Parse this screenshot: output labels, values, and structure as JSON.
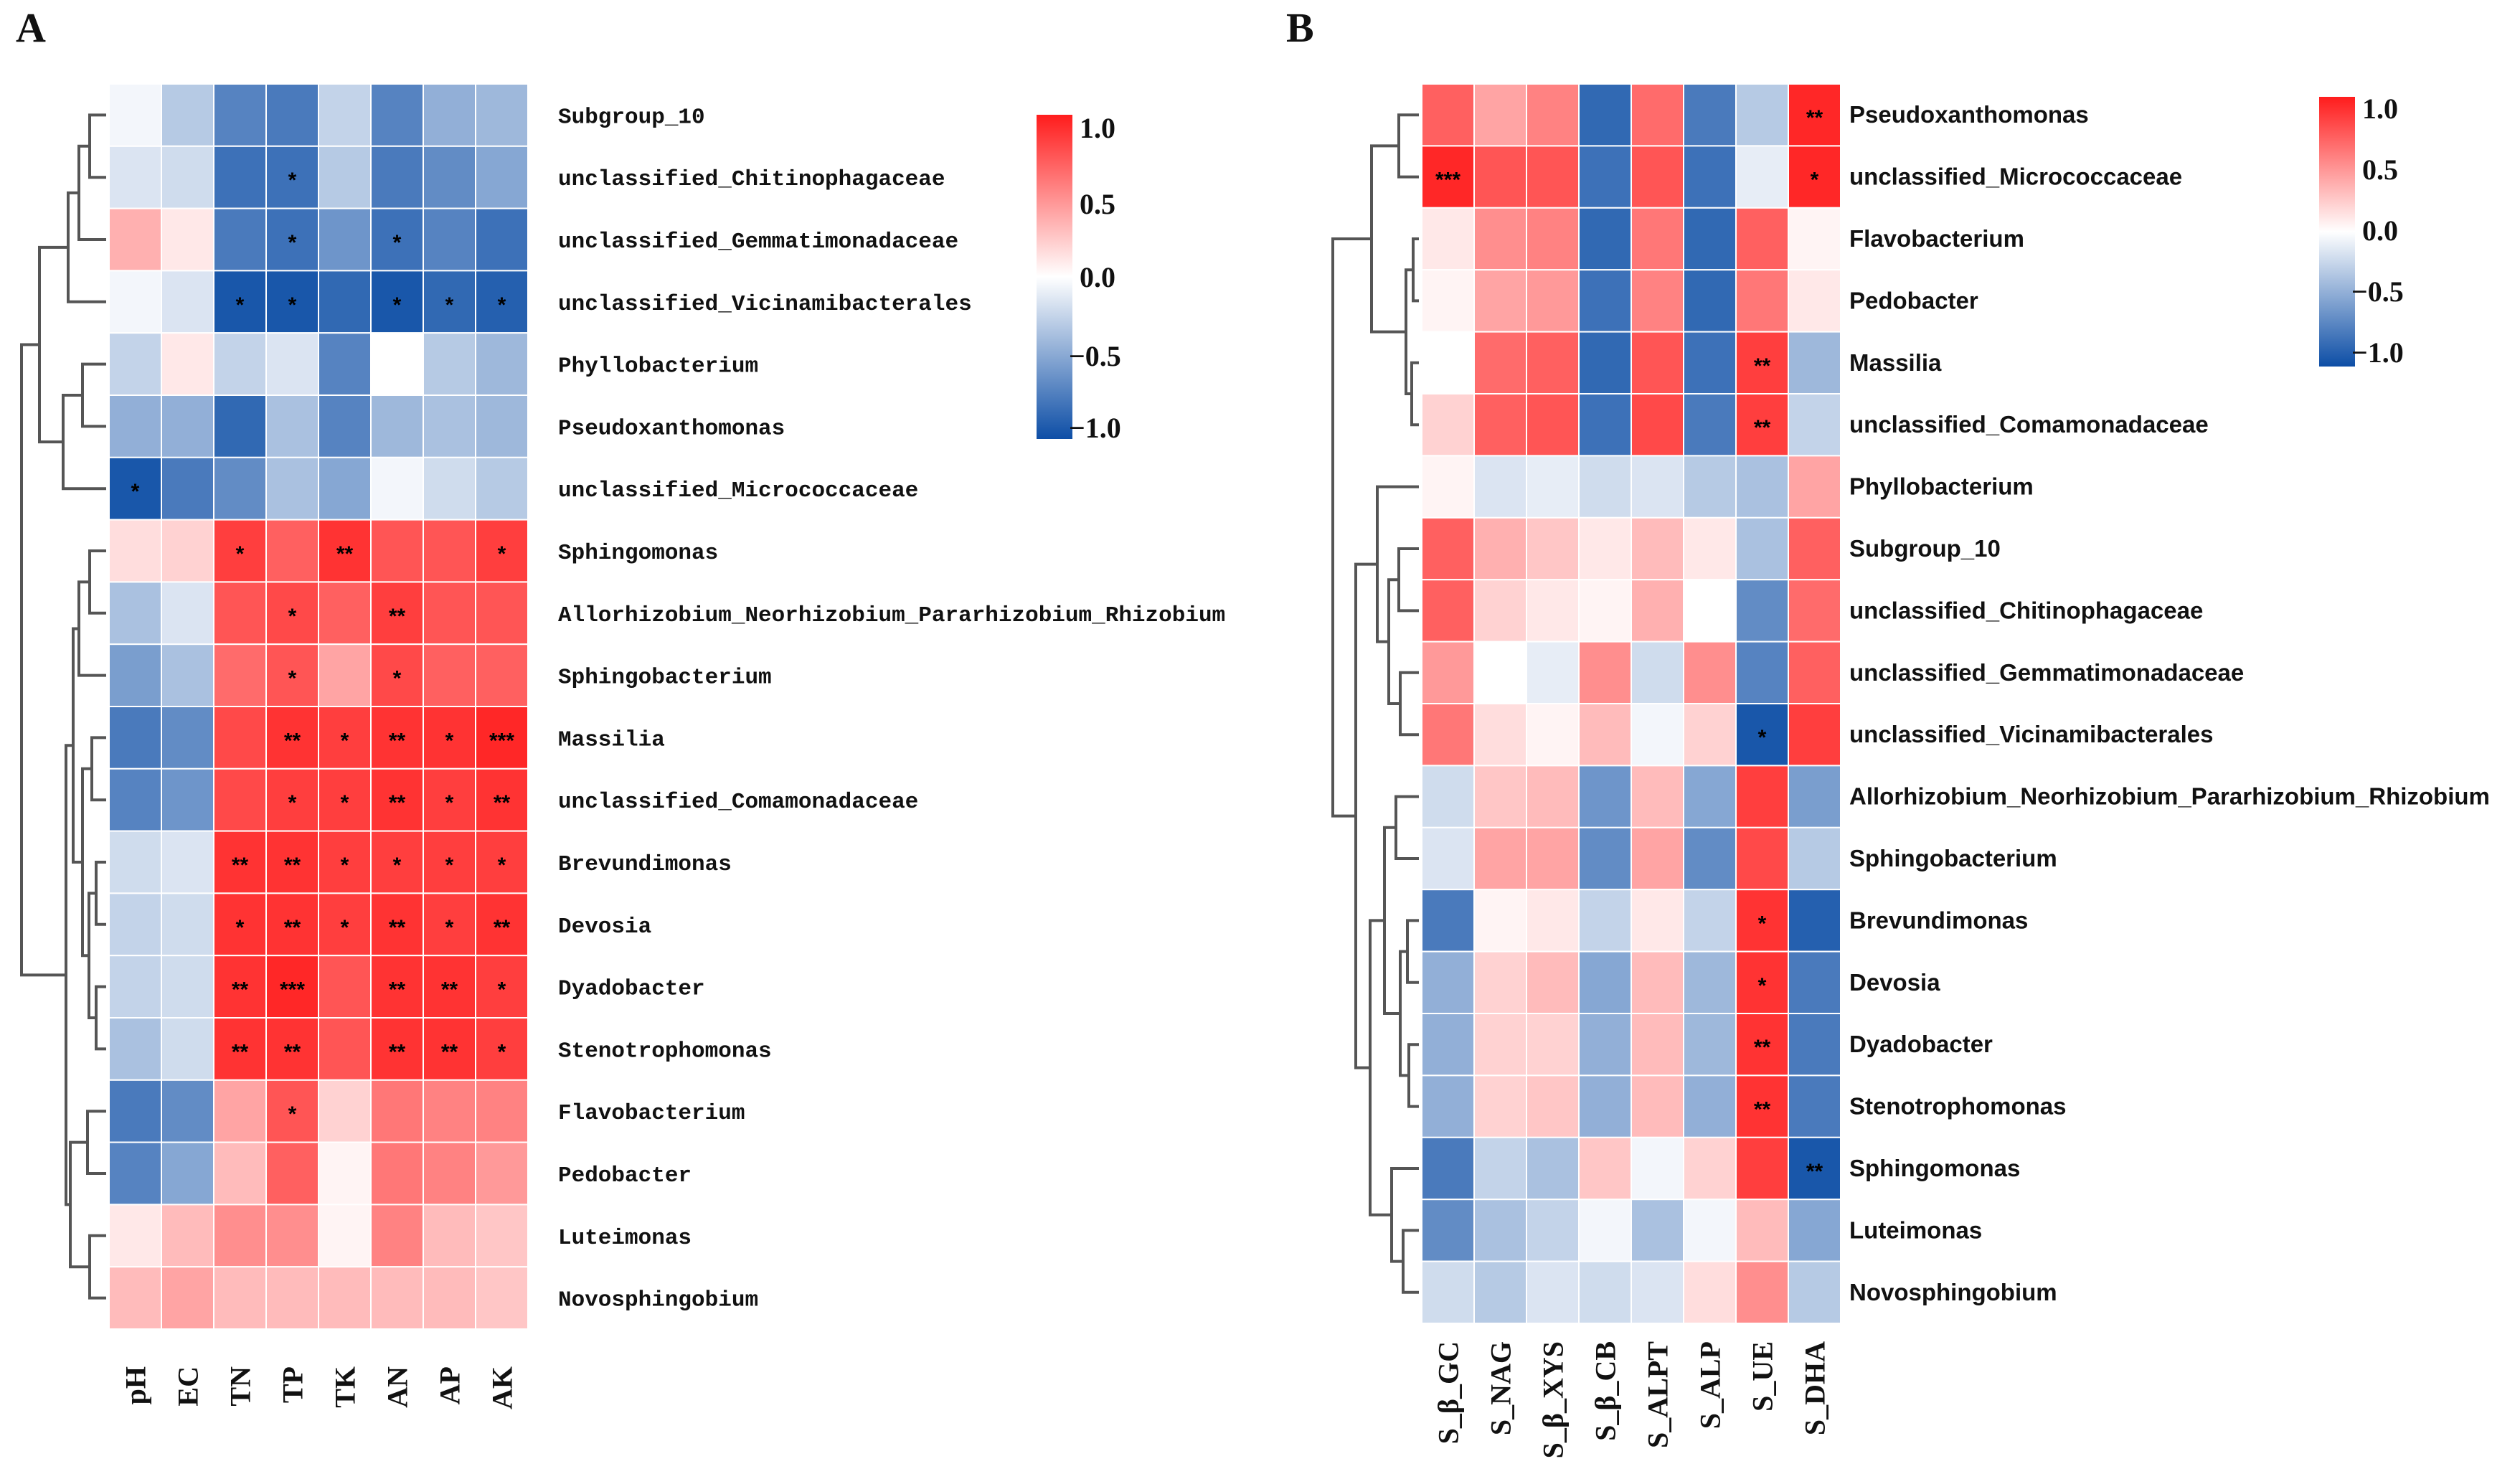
{
  "chart_data": [
    {
      "type": "heatmap",
      "panel_label": "A",
      "columns": [
        "pH",
        "EC",
        "TN",
        "TP",
        "TK",
        "AN",
        "AP",
        "AK"
      ],
      "rows": [
        "Subgroup_10",
        "unclassified_Chitinophagaceae",
        "unclassified_Gemmatimonadaceae",
        "unclassified_Vicinamibacterales",
        "Phyllobacterium",
        "Pseudoxanthomonas",
        "unclassified_Micrococcaceae",
        "Sphingomonas",
        "Allorhizobium_Neorhizobium_Pararhizobium_Rhizobium",
        "Sphingobacterium",
        "Massilia",
        "unclassified_Comamonadaceae",
        "Brevundimonas",
        "Devosia",
        "Dyadobacter",
        "Stenotrophomonas",
        "Flavobacterium",
        "Pedobacter",
        "Luteimonas",
        "Novosphingobium"
      ],
      "values": [
        [
          -0.05,
          -0.3,
          -0.7,
          -0.75,
          -0.25,
          -0.7,
          -0.45,
          -0.4
        ],
        [
          -0.15,
          -0.2,
          -0.8,
          -0.8,
          -0.3,
          -0.75,
          -0.65,
          -0.5
        ],
        [
          0.35,
          0.1,
          -0.75,
          -0.8,
          -0.6,
          -0.8,
          -0.7,
          -0.8
        ],
        [
          -0.05,
          -0.15,
          -0.95,
          -0.95,
          -0.85,
          -0.95,
          -0.85,
          -0.9
        ],
        [
          -0.25,
          0.1,
          -0.25,
          -0.15,
          -0.7,
          0.0,
          -0.3,
          -0.4
        ],
        [
          -0.45,
          -0.45,
          -0.85,
          -0.35,
          -0.7,
          -0.4,
          -0.35,
          -0.4
        ],
        [
          -0.95,
          -0.75,
          -0.65,
          -0.35,
          -0.5,
          -0.05,
          -0.2,
          -0.3
        ],
        [
          0.15,
          0.2,
          0.85,
          0.7,
          0.9,
          0.75,
          0.75,
          0.85
        ],
        [
          -0.35,
          -0.15,
          0.75,
          0.8,
          0.7,
          0.85,
          0.75,
          0.75
        ],
        [
          -0.55,
          -0.35,
          0.65,
          0.75,
          0.4,
          0.8,
          0.7,
          0.7
        ],
        [
          -0.75,
          -0.65,
          0.8,
          0.9,
          0.85,
          0.9,
          0.9,
          0.95
        ],
        [
          -0.7,
          -0.6,
          0.8,
          0.85,
          0.85,
          0.9,
          0.85,
          0.9
        ],
        [
          -0.2,
          -0.15,
          0.9,
          0.9,
          0.85,
          0.85,
          0.85,
          0.85
        ],
        [
          -0.25,
          -0.2,
          0.9,
          0.9,
          0.85,
          0.9,
          0.85,
          0.9
        ],
        [
          -0.25,
          -0.2,
          0.9,
          0.95,
          0.75,
          0.9,
          0.9,
          0.85
        ],
        [
          -0.35,
          -0.2,
          0.9,
          0.9,
          0.75,
          0.9,
          0.9,
          0.85
        ],
        [
          -0.75,
          -0.65,
          0.4,
          0.75,
          0.2,
          0.6,
          0.55,
          0.55
        ],
        [
          -0.7,
          -0.5,
          0.3,
          0.7,
          0.05,
          0.6,
          0.55,
          0.45
        ],
        [
          0.1,
          0.3,
          0.5,
          0.5,
          0.05,
          0.55,
          0.3,
          0.25
        ],
        [
          0.3,
          0.4,
          0.3,
          0.3,
          0.3,
          0.3,
          0.3,
          0.25
        ]
      ],
      "significance": [
        [
          "",
          "",
          "",
          "",
          "",
          "",
          "",
          ""
        ],
        [
          "",
          "",
          "",
          "*",
          "",
          "",
          "",
          ""
        ],
        [
          "",
          "",
          "",
          "*",
          "",
          "*",
          "",
          ""
        ],
        [
          "",
          "",
          "*",
          "*",
          "",
          "*",
          "*",
          "*"
        ],
        [
          "",
          "",
          "",
          "",
          "",
          "",
          "",
          ""
        ],
        [
          "",
          "",
          "",
          "",
          "",
          "",
          "",
          ""
        ],
        [
          "*",
          "",
          "",
          "",
          "",
          "",
          "",
          ""
        ],
        [
          "",
          "",
          "*",
          "",
          "**",
          "",
          "",
          "*"
        ],
        [
          "",
          "",
          "",
          "*",
          "",
          "**",
          "",
          ""
        ],
        [
          "",
          "",
          "",
          "*",
          "",
          "*",
          "",
          ""
        ],
        [
          "",
          "",
          "",
          "**",
          "*",
          "**",
          "*",
          "***"
        ],
        [
          "",
          "",
          "",
          "*",
          "*",
          "**",
          "*",
          "**"
        ],
        [
          "",
          "",
          "**",
          "**",
          "*",
          "*",
          "*",
          "*"
        ],
        [
          "",
          "",
          "*",
          "**",
          "*",
          "**",
          "*",
          "**"
        ],
        [
          "",
          "",
          "**",
          "***",
          "",
          "**",
          "**",
          "*"
        ],
        [
          "",
          "",
          "**",
          "**",
          "",
          "**",
          "**",
          "*"
        ],
        [
          "",
          "",
          "",
          "*",
          "",
          "",
          "",
          ""
        ],
        [
          "",
          "",
          "",
          "",
          "",
          "",
          "",
          ""
        ],
        [
          "",
          "",
          "",
          "",
          "",
          "",
          "",
          ""
        ],
        [
          "",
          "",
          "",
          "",
          "",
          "",
          "",
          ""
        ]
      ],
      "colorbar": {
        "range": [
          -1.0,
          1.0
        ],
        "ticks": [
          "1.0",
          "0.5",
          "0.0",
          "−0.5",
          "−1.0"
        ]
      }
    },
    {
      "type": "heatmap",
      "panel_label": "B",
      "columns": [
        "S_β_GC",
        "S_NAG",
        "S_β_XYS",
        "S_β_CB",
        "S_ALPT",
        "S_ALP",
        "S_UE",
        "S_DHA"
      ],
      "rows": [
        "Pseudoxanthomonas",
        "unclassified_Micrococcaceae",
        "Flavobacterium",
        "Pedobacter",
        "Massilia",
        "unclassified_Comamonadaceae",
        "Phyllobacterium",
        "Subgroup_10",
        "unclassified_Chitinophagaceae",
        "unclassified_Gemmatimonadaceae",
        "unclassified_Vicinamibacterales",
        "Allorhizobium_Neorhizobium_Pararhizobium_Rhizobium",
        "Sphingobacterium",
        "Brevundimonas",
        "Devosia",
        "Dyadobacter",
        "Stenotrophomonas",
        "Sphingomonas",
        "Luteimonas",
        "Novosphingobium"
      ],
      "values": [
        [
          0.7,
          0.4,
          0.55,
          -0.85,
          0.65,
          -0.75,
          -0.3,
          0.95
        ],
        [
          0.95,
          0.75,
          0.75,
          -0.8,
          0.75,
          -0.8,
          -0.1,
          0.95
        ],
        [
          0.1,
          0.5,
          0.55,
          -0.85,
          0.6,
          -0.85,
          0.7,
          0.05
        ],
        [
          0.05,
          0.4,
          0.45,
          -0.8,
          0.55,
          -0.85,
          0.6,
          0.1
        ],
        [
          0.0,
          0.65,
          0.7,
          -0.85,
          0.75,
          -0.8,
          0.85,
          -0.4
        ],
        [
          0.2,
          0.7,
          0.75,
          -0.8,
          0.8,
          -0.75,
          0.85,
          -0.25
        ],
        [
          0.05,
          -0.15,
          -0.1,
          -0.2,
          -0.15,
          -0.3,
          -0.35,
          0.4
        ],
        [
          0.7,
          0.35,
          0.25,
          0.1,
          0.3,
          0.1,
          -0.35,
          0.7
        ],
        [
          0.7,
          0.2,
          0.1,
          0.05,
          0.35,
          0.0,
          -0.65,
          0.65
        ],
        [
          0.45,
          0.0,
          -0.1,
          0.5,
          -0.2,
          0.5,
          -0.7,
          0.7
        ],
        [
          0.6,
          0.15,
          0.05,
          0.3,
          -0.05,
          0.2,
          -0.95,
          0.85
        ],
        [
          -0.2,
          0.25,
          0.3,
          -0.6,
          0.3,
          -0.5,
          0.85,
          -0.55
        ],
        [
          -0.15,
          0.4,
          0.4,
          -0.65,
          0.4,
          -0.65,
          0.8,
          -0.3
        ],
        [
          -0.75,
          0.05,
          0.1,
          -0.25,
          0.1,
          -0.25,
          0.9,
          -0.9
        ],
        [
          -0.45,
          0.2,
          0.3,
          -0.5,
          0.3,
          -0.4,
          0.9,
          -0.75
        ],
        [
          -0.45,
          0.2,
          0.2,
          -0.45,
          0.3,
          -0.4,
          0.9,
          -0.75
        ],
        [
          -0.45,
          0.2,
          0.25,
          -0.45,
          0.3,
          -0.45,
          0.9,
          -0.75
        ],
        [
          -0.75,
          -0.25,
          -0.35,
          0.25,
          -0.05,
          0.2,
          0.85,
          -0.95
        ],
        [
          -0.65,
          -0.35,
          -0.25,
          -0.05,
          -0.35,
          -0.05,
          0.3,
          -0.5
        ],
        [
          -0.2,
          -0.3,
          -0.15,
          -0.2,
          -0.15,
          0.15,
          0.5,
          -0.3
        ]
      ],
      "significance": [
        [
          "",
          "",
          "",
          "",
          "",
          "",
          "",
          "**"
        ],
        [
          "***",
          "",
          "",
          "",
          "",
          "",
          "",
          "*"
        ],
        [
          "",
          "",
          "",
          "",
          "",
          "",
          "",
          ""
        ],
        [
          "",
          "",
          "",
          "",
          "",
          "",
          "",
          ""
        ],
        [
          "",
          "",
          "",
          "",
          "",
          "",
          "**",
          ""
        ],
        [
          "",
          "",
          "",
          "",
          "",
          "",
          "**",
          ""
        ],
        [
          "",
          "",
          "",
          "",
          "",
          "",
          "",
          ""
        ],
        [
          "",
          "",
          "",
          "",
          "",
          "",
          "",
          ""
        ],
        [
          "",
          "",
          "",
          "",
          "",
          "",
          "",
          ""
        ],
        [
          "",
          "",
          "",
          "",
          "",
          "",
          "",
          ""
        ],
        [
          "",
          "",
          "",
          "",
          "",
          "",
          "*",
          ""
        ],
        [
          "",
          "",
          "",
          "",
          "",
          "",
          "",
          ""
        ],
        [
          "",
          "",
          "",
          "",
          "",
          "",
          "",
          ""
        ],
        [
          "",
          "",
          "",
          "",
          "",
          "",
          "*",
          ""
        ],
        [
          "",
          "",
          "",
          "",
          "",
          "",
          "*",
          ""
        ],
        [
          "",
          "",
          "",
          "",
          "",
          "",
          "**",
          ""
        ],
        [
          "",
          "",
          "",
          "",
          "",
          "",
          "**",
          ""
        ],
        [
          "",
          "",
          "",
          "",
          "",
          "",
          "",
          "**"
        ],
        [
          "",
          "",
          "",
          "",
          "",
          "",
          "",
          ""
        ],
        [
          "",
          "",
          "",
          "",
          "",
          "",
          "",
          ""
        ]
      ],
      "colorbar": {
        "range": [
          -1.0,
          1.0
        ],
        "ticks": [
          "1.0",
          "0.5",
          "0.0",
          "−0.5",
          "−1.0"
        ]
      }
    }
  ]
}
